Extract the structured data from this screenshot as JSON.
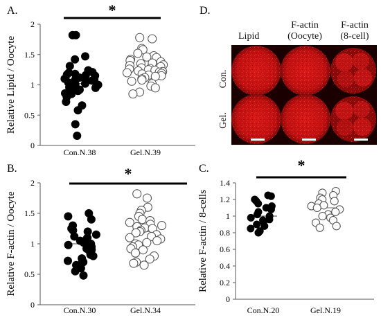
{
  "panel_letters": {
    "A": "A.",
    "B": "B.",
    "C": "C.",
    "D": "D."
  },
  "chart_data": [
    {
      "id": "A",
      "type": "scatter",
      "panel": "A.",
      "ylabel": "Relative Lipid / Oocyte",
      "ylim": [
        0,
        2
      ],
      "yticks": [
        "0",
        "0.5",
        "1",
        "1.5",
        "2"
      ],
      "yticks_values": [
        0,
        0.5,
        1,
        1.5,
        2
      ],
      "categories": [
        "Con.N.38",
        "Gel.N.39"
      ],
      "significance": "*",
      "series": [
        {
          "filled": true,
          "values": [
            1.82,
            1.82,
            1.47,
            1.42,
            1.31,
            1.24,
            1.21,
            1.2,
            1.18,
            1.17,
            1.16,
            1.15,
            1.12,
            1.1,
            1.09,
            1.08,
            1.07,
            1.06,
            1.04,
            1.03,
            1.02,
            1.01,
            1.0,
            0.99,
            0.97,
            0.96,
            0.95,
            0.92,
            0.9,
            0.86,
            0.85,
            0.82,
            0.8,
            0.72,
            0.66,
            0.58,
            0.35,
            0.16
          ],
          "mean": 1.02
        },
        {
          "filled": false,
          "values": [
            1.78,
            1.76,
            1.6,
            1.58,
            1.52,
            1.48,
            1.46,
            1.45,
            1.42,
            1.4,
            1.38,
            1.36,
            1.35,
            1.33,
            1.32,
            1.3,
            1.28,
            1.27,
            1.26,
            1.25,
            1.24,
            1.23,
            1.22,
            1.21,
            1.2,
            1.19,
            1.18,
            1.16,
            1.15,
            1.14,
            1.12,
            1.1,
            1.08,
            1.06,
            1.02,
            0.98,
            0.95,
            0.88,
            0.85
          ],
          "mean": 1.25
        }
      ]
    },
    {
      "id": "B",
      "type": "scatter",
      "panel": "B.",
      "ylabel": "Relative F-actin / Oocyte",
      "ylim": [
        0,
        2
      ],
      "yticks": [
        "0",
        "0.5",
        "1",
        "1.5",
        "2"
      ],
      "yticks_values": [
        0,
        0.5,
        1,
        1.5,
        2
      ],
      "categories": [
        "Con.N.30",
        "Gel.N.34"
      ],
      "significance": "*",
      "series": [
        {
          "filled": true,
          "values": [
            1.5,
            1.45,
            1.4,
            1.3,
            1.25,
            1.22,
            1.2,
            1.15,
            1.12,
            1.1,
            1.08,
            1.05,
            1.02,
            1.0,
            0.98,
            0.95,
            0.92,
            0.9,
            0.88,
            0.85,
            0.82,
            0.8,
            0.76,
            0.72,
            0.7,
            0.65,
            0.6,
            0.55,
            0.48,
            0.72
          ],
          "mean": 1.0
        },
        {
          "filled": false,
          "values": [
            1.82,
            1.75,
            1.6,
            1.55,
            1.5,
            1.45,
            1.4,
            1.38,
            1.35,
            1.32,
            1.3,
            1.28,
            1.26,
            1.25,
            1.22,
            1.2,
            1.18,
            1.15,
            1.12,
            1.1,
            1.08,
            1.05,
            1.02,
            1.0,
            0.98,
            0.95,
            0.92,
            0.9,
            0.85,
            0.8,
            0.75,
            0.7,
            0.68,
            0.65
          ],
          "mean": 1.2
        }
      ]
    },
    {
      "id": "C",
      "type": "scatter",
      "panel": "C.",
      "ylabel": "Relative F-actin / 8-cells",
      "ylim": [
        0,
        1.4
      ],
      "yticks": [
        "0",
        "0.2",
        "0.4",
        "0.6",
        "0.8",
        "1",
        "1.2",
        "1.4"
      ],
      "yticks_values": [
        0,
        0.2,
        0.4,
        0.6,
        0.8,
        1.0,
        1.2,
        1.4
      ],
      "categories": [
        "Con.N.20",
        "Gel.N.19"
      ],
      "significance": "*",
      "series": [
        {
          "filled": true,
          "values": [
            1.25,
            1.24,
            1.2,
            1.18,
            1.15,
            1.12,
            1.1,
            1.08,
            1.05,
            1.02,
            1.0,
            0.98,
            0.96,
            0.95,
            0.93,
            0.9,
            0.88,
            0.85,
            0.82,
            0.8
          ],
          "mean": 1.0
        },
        {
          "filled": false,
          "values": [
            1.3,
            1.28,
            1.25,
            1.22,
            1.2,
            1.18,
            1.15,
            1.13,
            1.12,
            1.1,
            1.08,
            1.05,
            1.02,
            1.0,
            0.98,
            0.95,
            0.92,
            0.88,
            0.86
          ],
          "mean": 1.1
        }
      ]
    }
  ],
  "micrograph": {
    "panel": "D.",
    "columns": [
      "Lipid",
      "F-actin\n(Oocyte)",
      "F-actin\n(8-cell)"
    ],
    "rows": [
      "Con.",
      "Gel."
    ],
    "colors": {
      "background": "#1a0000",
      "signal": "#d01010"
    }
  }
}
